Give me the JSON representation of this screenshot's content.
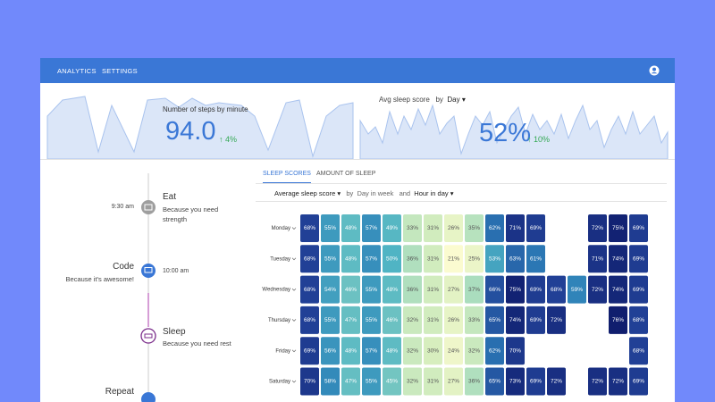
{
  "nav": {
    "items": [
      "ANALYTICS",
      "SETTINGS"
    ]
  },
  "steps": {
    "label": "Number of steps by minute",
    "value": "94.0",
    "change": "4%"
  },
  "sleep_avg": {
    "label": "Avg sleep score",
    "by": "by",
    "period": "Day",
    "value": "52%",
    "change": "10%"
  },
  "timeline": [
    {
      "time": "9:30 am",
      "title": "Eat",
      "subtitle": "Because you need strength"
    },
    {
      "time": "10:00 am",
      "title": "Code",
      "subtitle": "Because it's awesome!"
    },
    {
      "title": "Sleep",
      "subtitle": "Because you need rest"
    },
    {
      "title": "Repeat"
    }
  ],
  "tabs": [
    "SLEEP SCORES",
    "AMOUNT OF SLEEP"
  ],
  "filters": {
    "metric": "Average sleep score",
    "by": "by",
    "x_dim": "Day in week",
    "and": "and",
    "y_dim": "Hour in day"
  },
  "heatmap": {
    "rows": [
      {
        "label": "Monday",
        "values": [
          68,
          55,
          48,
          57,
          49,
          33,
          31,
          26,
          35,
          62,
          71,
          69,
          null,
          null,
          72,
          75,
          69
        ],
        "value_labels": [
          "68%",
          "55%",
          "48%",
          "57%",
          "49%",
          "33%",
          "31%",
          "26%",
          "35%",
          "62%",
          "71%",
          "69%",
          null,
          null,
          "72%",
          "75%",
          "69%"
        ]
      },
      {
        "label": "Tuesday",
        "values": [
          68,
          55,
          48,
          57,
          50,
          36,
          31,
          21,
          25,
          53,
          63,
          61,
          null,
          null,
          71,
          74,
          69
        ],
        "value_labels": [
          "68%",
          "55%",
          "48%",
          "57%",
          "50%",
          "36%",
          "31%",
          "21%",
          "25%",
          "53%",
          "63%",
          "61%",
          null,
          null,
          "71%",
          "74%",
          "69%"
        ]
      },
      {
        "label": "Wednesday",
        "values": [
          68,
          54,
          46,
          55,
          48,
          36,
          31,
          27,
          37,
          66,
          75,
          69,
          68,
          59,
          72,
          74,
          69
        ],
        "value_labels": [
          "68%",
          "54%",
          "46%",
          "55%",
          "48%",
          "36%",
          "31%",
          "27%",
          "37%",
          "66%",
          "75%",
          "69%",
          "68%",
          "59%",
          "72%",
          "74%",
          "69%"
        ]
      },
      {
        "label": "Thursday",
        "values": [
          68,
          55,
          47,
          55,
          46,
          32,
          31,
          26,
          33,
          65,
          74,
          69,
          72,
          null,
          null,
          76,
          68
        ],
        "value_labels": [
          "68%",
          "55%",
          "47%",
          "55%",
          "46%",
          "32%",
          "31%",
          "26%",
          "33%",
          "65%",
          "74%",
          "69%",
          "72%",
          null,
          null,
          "76%",
          "68%"
        ]
      },
      {
        "label": "Friday",
        "values": [
          69,
          56,
          48,
          57,
          48,
          32,
          30,
          24,
          32,
          62,
          70,
          null,
          null,
          null,
          null,
          null,
          68
        ],
        "value_labels": [
          "69%",
          "56%",
          "48%",
          "57%",
          "48%",
          "32%",
          "30%",
          "24%",
          "32%",
          "62%",
          "70%",
          null,
          null,
          null,
          null,
          null,
          "68%"
        ]
      },
      {
        "label": "Saturday",
        "values": [
          70,
          58,
          47,
          55,
          45,
          32,
          31,
          27,
          36,
          65,
          73,
          69,
          72,
          null,
          72,
          72,
          69
        ],
        "value_labels": [
          "70%",
          "58%",
          "47%",
          "55%",
          "45%",
          "32%",
          "31%",
          "27%",
          "36%",
          "65%",
          "73%",
          "69%",
          "72%",
          null,
          "72%",
          "72%",
          "69%"
        ]
      }
    ]
  }
}
